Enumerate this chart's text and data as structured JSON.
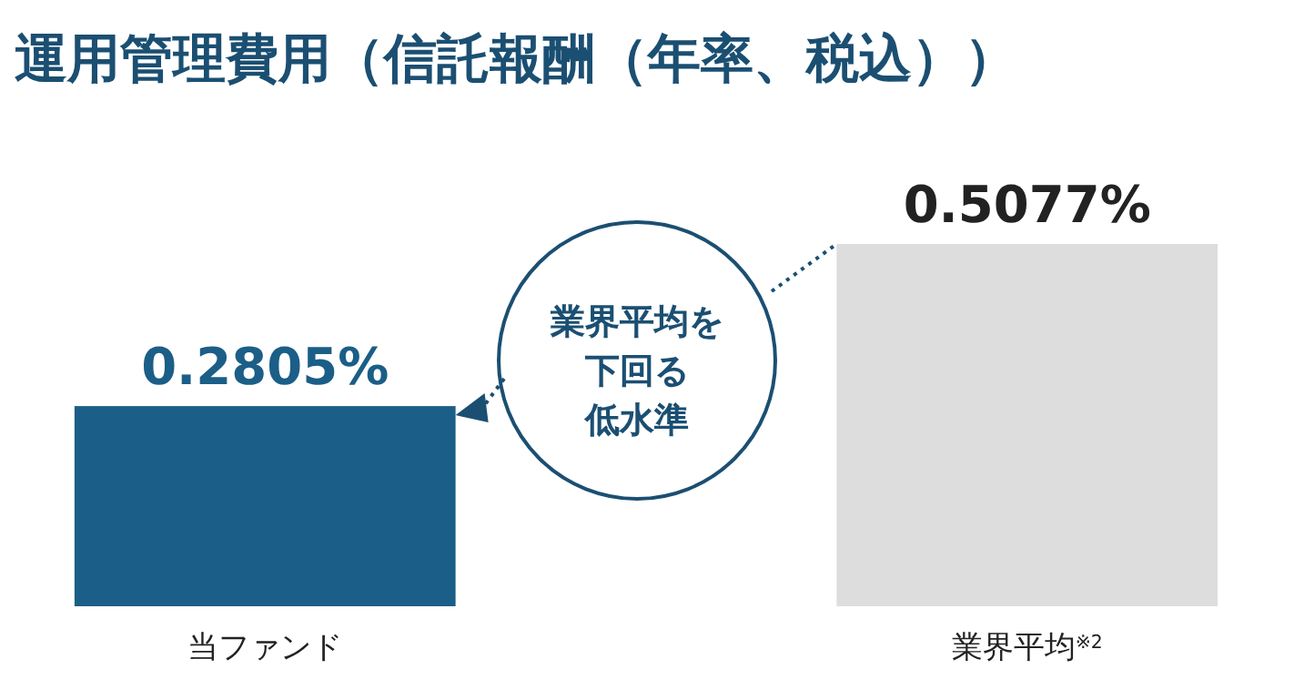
{
  "chart_data": {
    "type": "bar",
    "title": "運用管理費用（信託報酬（年率、税込））",
    "categories": [
      "当ファンド",
      "業界平均$^{※2}$"
    ],
    "values": [
      0.2805,
      0.5077
    ],
    "colors": [
      "#1b5e87",
      "#dddddd"
    ],
    "value_labels": [
      "0.2805%",
      "0.5077%"
    ],
    "annotations": [
      "業界平均を下回る低水準"
    ]
  }
}
